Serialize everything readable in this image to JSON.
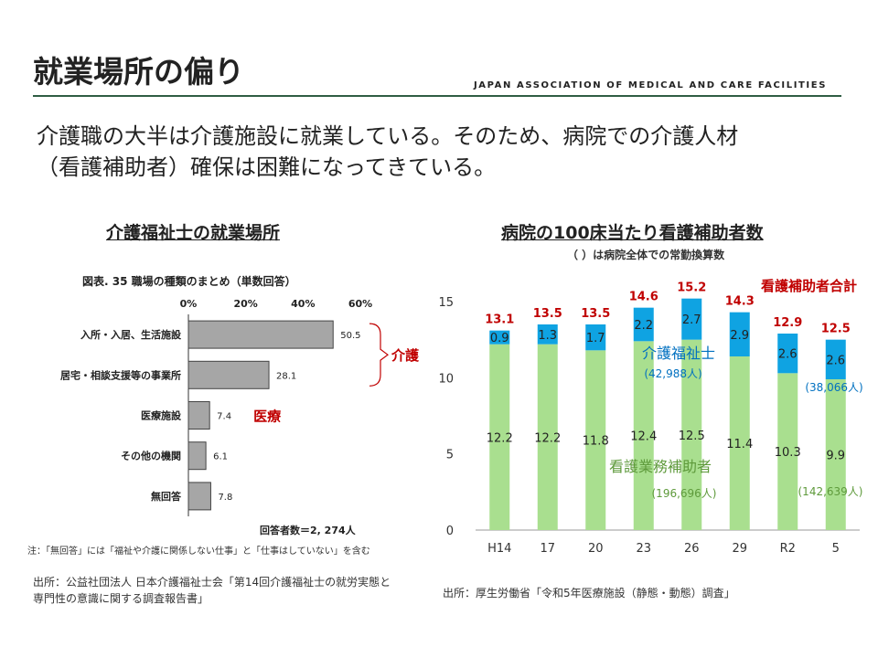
{
  "header": {
    "title": "就業場所の偏り",
    "org": "JAPAN ASSOCIATION OF MEDICAL AND CARE FACILITIES",
    "lead": [
      "介護職の大半は介護施設に就業している。そのため、病院での介護人材",
      "（看護補助者）確保は困難になってきている。"
    ]
  },
  "left": {
    "subtitle": "介護福祉士の就業場所",
    "source": [
      "出所：公益社団法人 日本介護福祉士会「第14回介護福祉士の就労実態と",
      "専門性の意識に関する調査報告書」"
    ]
  },
  "right": {
    "subtitle": "病院の100床当たり看護補助者数",
    "note": "（ ）は病院全体での常勤換算数",
    "source": "出所：厚生労働省「令和5年医療施設（静態・動態）調査」"
  },
  "chart_data": [
    {
      "type": "bar",
      "orientation": "horizontal",
      "title": "図表. 35 職場の種類のまとめ（単数回答）",
      "categories": [
        "入所・入居、生活施設",
        "居宅・相談支援等の事業所",
        "医療施設",
        "その他の機関",
        "無回答"
      ],
      "values": [
        50.5,
        28.1,
        7.4,
        6.1,
        7.8
      ],
      "value_labels": [
        "50.5",
        "28.1",
        "7.4",
        "6.1",
        "7.8"
      ],
      "xlim": [
        0,
        60
      ],
      "ticks": [
        "0%",
        "20%",
        "40%",
        "60%"
      ],
      "tick_values": [
        0,
        20,
        40,
        60
      ],
      "bar_color": "#a6a6a6",
      "respondents": "回答者数＝2, 274人",
      "footnote": "注：「無回答」には「福祉や介護に関係しない仕事」と「仕事はしていない」を含む",
      "annotations": [
        {
          "text": "介護",
          "color": "#c00000",
          "target": [
            "入所・入居、生活施設",
            "居宅・相談支援等の事業所"
          ]
        },
        {
          "text": "医療",
          "color": "#c00000",
          "target": [
            "医療施設"
          ]
        }
      ]
    },
    {
      "type": "bar",
      "stacked": true,
      "categories": [
        "H14",
        "17",
        "20",
        "23",
        "26",
        "29",
        "R2",
        "5"
      ],
      "series": [
        {
          "name": "看護業務補助者",
          "color": "#a9df8f",
          "values": [
            12.2,
            12.2,
            11.8,
            12.4,
            12.5,
            11.4,
            10.3,
            9.9
          ],
          "labels": [
            "12.2",
            "12.2",
            "11.8",
            "12.4",
            "12.5",
            "11.4",
            "10.3",
            "9.9"
          ]
        },
        {
          "name": "介護福祉士",
          "color": "#0fa3e2",
          "values": [
            0.9,
            1.3,
            1.7,
            2.2,
            2.7,
            2.9,
            2.6,
            2.6
          ],
          "labels": [
            "0.9",
            "1.3",
            "1.7",
            "2.2",
            "2.7",
            "2.9",
            "2.6",
            "2.6"
          ]
        }
      ],
      "totals": [
        "13.1",
        "13.5",
        "13.5",
        "14.6",
        "15.2",
        "14.3",
        "12.9",
        "12.5"
      ],
      "totals_label": "看護補助者合計",
      "total_color": "#c00000",
      "ylim": [
        0,
        15
      ],
      "yticks": [
        "0",
        "5",
        "10",
        "15"
      ],
      "ytick_values": [
        0,
        5,
        10,
        15
      ],
      "annotations": [
        {
          "text": "介護福祉士",
          "color": "#0070c0"
        },
        {
          "text": "(42,988人)",
          "color": "#0070c0"
        },
        {
          "text": "(38,066人)",
          "color": "#0070c0"
        },
        {
          "text": "看護業務補助者",
          "color": "#5e9a3b"
        },
        {
          "text": "(196,696人)",
          "color": "#5e9a3b"
        },
        {
          "text": "(142,639人)",
          "color": "#5e9a3b"
        }
      ]
    }
  ]
}
